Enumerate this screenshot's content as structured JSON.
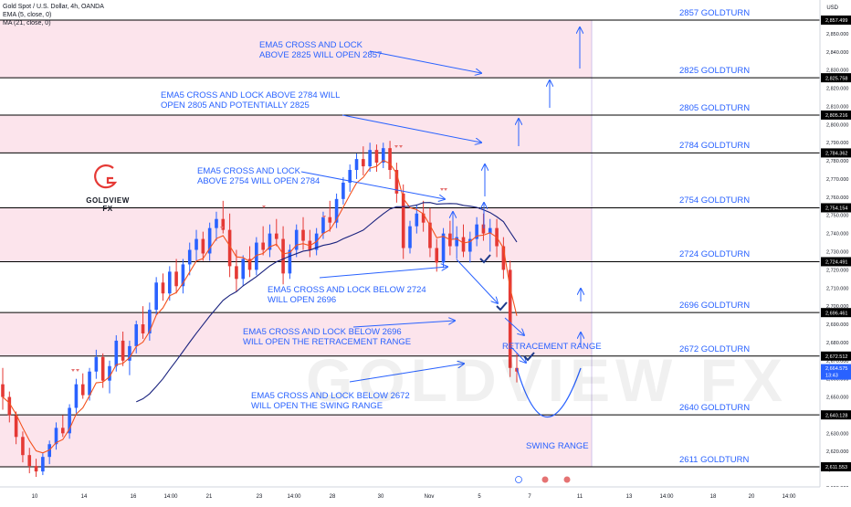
{
  "header": {
    "symbol_line": "Gold Spot / U.S. Dollar, 4h, OANDA",
    "ema_line": "EMA (5, close, 0)",
    "ma_line": "MA (21, close, 0)",
    "currency": "USD"
  },
  "logo": {
    "text": "GOLDVIEW FX",
    "watermark": "GOLDVIEW FX"
  },
  "colors": {
    "up": "#2962ff",
    "down": "#e53935",
    "zone": "#fce4ec",
    "level_text": "#2962ff",
    "ema": "#f4511e",
    "ma": "#1a237e"
  },
  "chart_data": {
    "type": "candlestick",
    "ylim": [
      2600,
      2862
    ],
    "y_ticks": [
      2600,
      2610,
      2620,
      2630,
      2640,
      2650,
      2660,
      2670,
      2680,
      2690,
      2700,
      2710,
      2720,
      2730,
      2740,
      2750,
      2760,
      2770,
      2780,
      2790,
      2800,
      2810,
      2820,
      2830,
      2840,
      2850
    ],
    "x_ticks": [
      "10",
      "14",
      "16",
      "14:00",
      "21",
      "23",
      "14:00",
      "28",
      "30",
      "Nov",
      "5",
      "7",
      "11",
      "13",
      "14:00",
      "18",
      "20",
      "14:00"
    ],
    "price_tags": [
      {
        "value": 2857.499,
        "label": "2,857.499"
      },
      {
        "value": 2825.758,
        "label": "2,825.758"
      },
      {
        "value": 2805.216,
        "label": "2,805.216"
      },
      {
        "value": 2784.362,
        "label": "2,784.362"
      },
      {
        "value": 2754.154,
        "label": "2,754.154"
      },
      {
        "value": 2724.491,
        "label": "2,724.491"
      },
      {
        "value": 2696.461,
        "label": "2,696.461"
      },
      {
        "value": 2672.512,
        "label": "2,672.512"
      },
      {
        "value": 2640.128,
        "label": "2,640.128"
      },
      {
        "value": 2611.553,
        "label": "2,611.553"
      }
    ],
    "current_price": {
      "value": 2664.575,
      "label": "2,664.575",
      "timer": "13:43"
    },
    "levels": [
      {
        "value": 2857.499,
        "label": "2857 GOLDTURN"
      },
      {
        "value": 2825.758,
        "label": "2825 GOLDTURN"
      },
      {
        "value": 2805.216,
        "label": "2805 GOLDTURN"
      },
      {
        "value": 2784.362,
        "label": "2784 GOLDTURN"
      },
      {
        "value": 2754.154,
        "label": "2754 GOLDTURN"
      },
      {
        "value": 2724.491,
        "label": "2724 GOLDTURN"
      },
      {
        "value": 2696.461,
        "label": "2696 GOLDTURN"
      },
      {
        "value": 2672.512,
        "label": "2672 GOLDTURN"
      },
      {
        "value": 2640.128,
        "label": "2640 GOLDTURN"
      },
      {
        "value": 2611.553,
        "label": "2611 GOLDTURN"
      }
    ],
    "zones": [
      [
        2825.758,
        2857.499
      ],
      [
        2784.362,
        2805.216
      ],
      [
        2724.491,
        2754.154
      ],
      [
        2672.512,
        2696.461
      ],
      [
        2611.553,
        2640.128
      ]
    ],
    "annotations": [
      {
        "lines": [
          "EMA5 CROSS AND LOCK",
          "ABOVE 2825 WILL OPEN 2857"
        ]
      },
      {
        "lines": [
          "EMA5 CROSS AND LOCK ABOVE 2784 WILL",
          "OPEN 2805 AND POTENTIALLY 2825"
        ]
      },
      {
        "lines": [
          "EMA5 CROSS AND LOCK",
          "ABOVE 2754 WILL OPEN 2784"
        ]
      },
      {
        "lines": [
          "EMA5 CROSS AND LOCK BELOW 2724",
          "WILL OPEN 2696"
        ]
      },
      {
        "lines": [
          "EMA5 CROSS AND LOCK BELOW 2696",
          "WILL OPEN THE RETRACEMENT RANGE"
        ]
      },
      {
        "lines": [
          "EMA5 CROSS AND LOCK BELOW 2672",
          "WILL OPEN THE SWING RANGE"
        ]
      }
    ],
    "range_labels": [
      "RETRACEMENT RANGE",
      "SWING RANGE"
    ],
    "candles": [
      [
        2657,
        2666,
        2643,
        2650
      ],
      [
        2650,
        2653,
        2636,
        2640
      ],
      [
        2640,
        2642,
        2624,
        2628
      ],
      [
        2628,
        2631,
        2614,
        2618
      ],
      [
        2618,
        2622,
        2608,
        2612
      ],
      [
        2612,
        2616,
        2606,
        2609
      ],
      [
        2609,
        2619,
        2607,
        2617
      ],
      [
        2617,
        2626,
        2613,
        2624
      ],
      [
        2624,
        2636,
        2621,
        2633
      ],
      [
        2633,
        2640,
        2628,
        2630
      ],
      [
        2630,
        2646,
        2627,
        2644
      ],
      [
        2644,
        2660,
        2641,
        2657
      ],
      [
        2657,
        2663,
        2649,
        2651
      ],
      [
        2651,
        2666,
        2648,
        2664
      ],
      [
        2664,
        2676,
        2660,
        2672
      ],
      [
        2672,
        2674,
        2655,
        2659
      ],
      [
        2659,
        2670,
        2652,
        2667
      ],
      [
        2667,
        2684,
        2664,
        2681
      ],
      [
        2681,
        2686,
        2667,
        2670
      ],
      [
        2670,
        2681,
        2662,
        2678
      ],
      [
        2678,
        2692,
        2674,
        2690
      ],
      [
        2690,
        2700,
        2682,
        2685
      ],
      [
        2685,
        2702,
        2681,
        2698
      ],
      [
        2698,
        2716,
        2695,
        2713
      ],
      [
        2713,
        2718,
        2703,
        2707
      ],
      [
        2707,
        2722,
        2703,
        2719
      ],
      [
        2719,
        2726,
        2707,
        2711
      ],
      [
        2711,
        2726,
        2707,
        2723
      ],
      [
        2723,
        2735,
        2717,
        2731
      ],
      [
        2731,
        2742,
        2725,
        2737
      ],
      [
        2737,
        2741,
        2725,
        2729
      ],
      [
        2729,
        2746,
        2725,
        2743
      ],
      [
        2743,
        2752,
        2736,
        2748
      ],
      [
        2748,
        2758,
        2740,
        2742
      ],
      [
        2742,
        2751,
        2716,
        2722
      ],
      [
        2722,
        2731,
        2708,
        2715
      ],
      [
        2715,
        2728,
        2711,
        2726
      ],
      [
        2726,
        2733,
        2716,
        2720
      ],
      [
        2720,
        2738,
        2717,
        2735
      ],
      [
        2735,
        2744,
        2728,
        2731
      ],
      [
        2731,
        2745,
        2727,
        2740
      ],
      [
        2740,
        2748,
        2733,
        2737
      ],
      [
        2737,
        2744,
        2712,
        2718
      ],
      [
        2718,
        2734,
        2715,
        2731
      ],
      [
        2731,
        2745,
        2727,
        2742
      ],
      [
        2742,
        2749,
        2731,
        2736
      ],
      [
        2736,
        2742,
        2727,
        2731
      ],
      [
        2731,
        2743,
        2728,
        2740
      ],
      [
        2740,
        2752,
        2737,
        2749
      ],
      [
        2749,
        2758,
        2741,
        2746
      ],
      [
        2746,
        2762,
        2743,
        2759
      ],
      [
        2759,
        2771,
        2756,
        2768
      ],
      [
        2768,
        2778,
        2763,
        2775
      ],
      [
        2775,
        2784,
        2770,
        2781
      ],
      [
        2781,
        2788,
        2772,
        2777
      ],
      [
        2777,
        2790,
        2774,
        2786
      ],
      [
        2786,
        2789,
        2774,
        2779
      ],
      [
        2779,
        2790,
        2776,
        2787
      ],
      [
        2787,
        2791,
        2770,
        2775
      ],
      [
        2775,
        2779,
        2757,
        2762
      ],
      [
        2762,
        2767,
        2726,
        2732
      ],
      [
        2732,
        2747,
        2729,
        2744
      ],
      [
        2744,
        2756,
        2740,
        2751
      ],
      [
        2751,
        2758,
        2741,
        2746
      ],
      [
        2746,
        2754,
        2727,
        2732
      ],
      [
        2732,
        2737,
        2719,
        2724
      ],
      [
        2724,
        2743,
        2721,
        2740
      ],
      [
        2740,
        2747,
        2728,
        2733
      ],
      [
        2733,
        2744,
        2726,
        2738
      ],
      [
        2738,
        2745,
        2727,
        2730
      ],
      [
        2730,
        2741,
        2724,
        2737
      ],
      [
        2737,
        2749,
        2733,
        2745
      ],
      [
        2745,
        2751,
        2736,
        2740
      ],
      [
        2740,
        2748,
        2730,
        2743
      ],
      [
        2743,
        2748,
        2727,
        2733
      ],
      [
        2733,
        2738,
        2715,
        2720
      ],
      [
        2720,
        2725,
        2661,
        2666
      ],
      [
        2666,
        2674,
        2658,
        2664
      ]
    ]
  }
}
